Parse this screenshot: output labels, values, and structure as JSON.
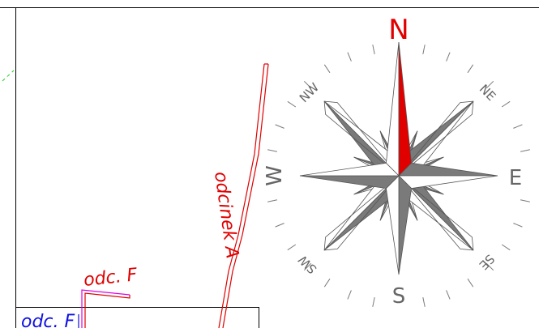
{
  "colors": {
    "background": "#ffffff",
    "frame": "#000000",
    "route_red": "#e00000",
    "route_magenta": "#e000e0",
    "label_blue": "#1010e0",
    "green_dash": "#22cc22",
    "compass_gray": "#7a7a7a",
    "compass_dark": "#555555",
    "north_red": "#e00000"
  },
  "drawing": {
    "labels": {
      "odcinek_a": "odcinek A",
      "odc_f_red": "odc. F",
      "odc_f_blue": "odc. F"
    }
  },
  "compass": {
    "cardinals": {
      "n": "N",
      "s": "S",
      "e": "E",
      "w": "W"
    },
    "intercardinals": {
      "ne": "NE",
      "nw": "NW",
      "se": "SE",
      "sw": "SW"
    }
  }
}
